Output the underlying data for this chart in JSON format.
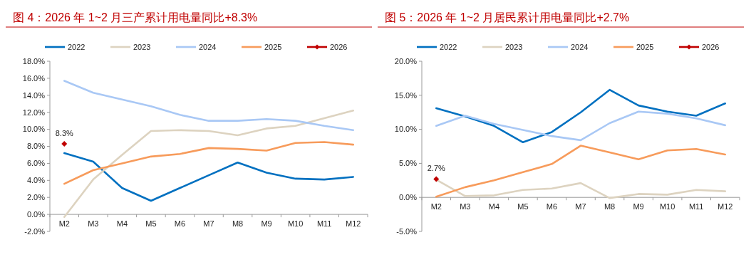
{
  "chart_data": [
    {
      "type": "line",
      "title": "图 4：2026 年 1~2 月三产累计用电量同比+8.3%",
      "categories": [
        "M2",
        "M3",
        "M4",
        "M5",
        "M6",
        "M7",
        "M8",
        "M9",
        "M10",
        "M11",
        "M12"
      ],
      "ylim": [
        -2,
        18
      ],
      "yticks": [
        {
          "value": -2,
          "label": "-2.0%"
        },
        {
          "value": 0,
          "label": "0.0%"
        },
        {
          "value": 2,
          "label": "2.0%"
        },
        {
          "value": 4,
          "label": "4.0%"
        },
        {
          "value": 6,
          "label": "6.0%"
        },
        {
          "value": 8,
          "label": "8.0%"
        },
        {
          "value": 10,
          "label": "10.0%"
        },
        {
          "value": 12,
          "label": "12.0%"
        },
        {
          "value": 14,
          "label": "14.0%"
        },
        {
          "value": 16,
          "label": "16.0%"
        },
        {
          "value": 18,
          "label": "18.0%"
        }
      ],
      "legend": "top",
      "grid": false,
      "series": [
        {
          "name": "2022",
          "color": "#0070c0",
          "values": [
            7.2,
            6.2,
            3.1,
            1.6,
            3.1,
            4.6,
            6.1,
            4.9,
            4.2,
            4.1,
            4.4
          ]
        },
        {
          "name": "2023",
          "color": "#ddd3c0",
          "values": [
            -0.3,
            4.1,
            7.0,
            9.8,
            9.9,
            9.8,
            9.3,
            10.1,
            10.4,
            11.3,
            12.2
          ]
        },
        {
          "name": "2024",
          "color": "#a9c8f5",
          "values": [
            15.7,
            14.3,
            13.5,
            12.7,
            11.7,
            11.0,
            11.0,
            11.2,
            11.0,
            10.4,
            9.9
          ]
        },
        {
          "name": "2025",
          "color": "#f79b5b",
          "values": [
            3.6,
            5.2,
            6.0,
            6.8,
            7.1,
            7.8,
            7.7,
            7.5,
            8.4,
            8.5,
            8.2
          ]
        },
        {
          "name": "2026",
          "color": "#c00000",
          "marker": "diamond",
          "values": [
            8.3,
            null,
            null,
            null,
            null,
            null,
            null,
            null,
            null,
            null,
            null
          ],
          "value_labels": [
            "8.3%",
            null,
            null,
            null,
            null,
            null,
            null,
            null,
            null,
            null,
            null
          ]
        }
      ]
    },
    {
      "type": "line",
      "title": "图 5：2026 年 1~2 月居民累计用电量同比+2.7%",
      "categories": [
        "M2",
        "M3",
        "M4",
        "M5",
        "M6",
        "M7",
        "M8",
        "M9",
        "M10",
        "M11",
        "M12"
      ],
      "ylim": [
        -5,
        20
      ],
      "yticks": [
        {
          "value": -5,
          "label": "-5.0%"
        },
        {
          "value": 0,
          "label": "0.0%"
        },
        {
          "value": 5,
          "label": "5.0%"
        },
        {
          "value": 10,
          "label": "10.0%"
        },
        {
          "value": 15,
          "label": "15.0%"
        },
        {
          "value": 20,
          "label": "20.0%"
        }
      ],
      "legend": "top",
      "grid": false,
      "series": [
        {
          "name": "2022",
          "color": "#0070c0",
          "values": [
            13.1,
            11.9,
            10.5,
            8.1,
            9.6,
            12.5,
            15.8,
            13.5,
            12.6,
            12.0,
            13.8
          ]
        },
        {
          "name": "2023",
          "color": "#ddd3c0",
          "values": [
            2.6,
            0.2,
            0.3,
            1.1,
            1.3,
            2.1,
            -0.1,
            0.5,
            0.4,
            1.1,
            0.9
          ]
        },
        {
          "name": "2024",
          "color": "#a9c8f5",
          "values": [
            10.5,
            12.0,
            10.8,
            9.9,
            9.0,
            8.4,
            10.9,
            12.6,
            12.3,
            11.6,
            10.6
          ]
        },
        {
          "name": "2025",
          "color": "#f79b5b",
          "values": [
            0.1,
            1.5,
            2.5,
            3.7,
            4.9,
            7.6,
            6.6,
            5.6,
            6.9,
            7.1,
            6.3
          ]
        },
        {
          "name": "2026",
          "color": "#c00000",
          "marker": "diamond",
          "values": [
            2.7,
            null,
            null,
            null,
            null,
            null,
            null,
            null,
            null,
            null,
            null
          ],
          "value_labels": [
            "2.7%",
            null,
            null,
            null,
            null,
            null,
            null,
            null,
            null,
            null,
            null
          ]
        }
      ]
    }
  ]
}
